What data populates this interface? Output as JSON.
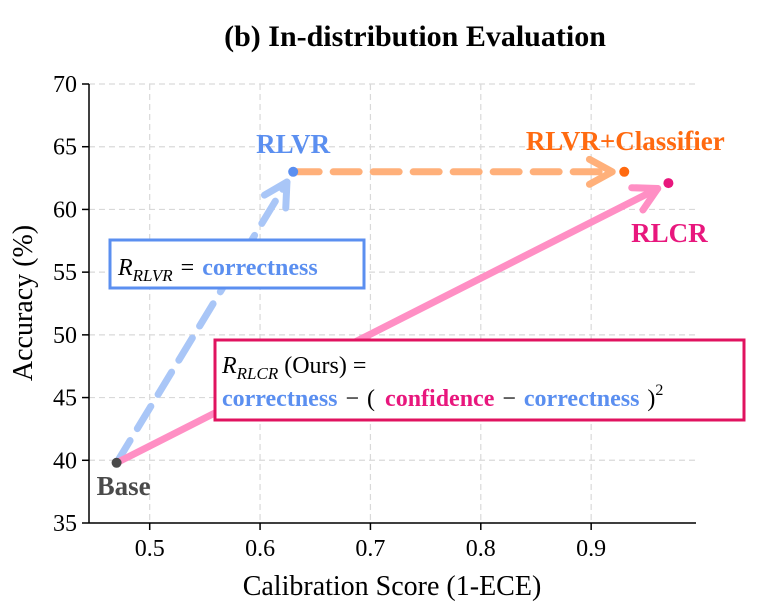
{
  "chart_data": {
    "type": "scatter",
    "title": "(b) In-distribution Evaluation",
    "xlabel": "Calibration Score (1-ECE)",
    "ylabel": "Accuracy (%)",
    "xlim": [
      0.445,
      0.995
    ],
    "ylim": [
      35,
      70
    ],
    "xticks": [
      0.5,
      0.6,
      0.7,
      0.8,
      0.9
    ],
    "xtick_labels": [
      "0.5",
      "0.6",
      "0.7",
      "0.8",
      "0.9"
    ],
    "yticks": [
      35,
      40,
      45,
      50,
      55,
      60,
      65,
      70
    ],
    "ytick_labels": [
      "35",
      "40",
      "45",
      "50",
      "55",
      "60",
      "65",
      "70"
    ],
    "grid": true,
    "points": [
      {
        "name": "Base",
        "x": 0.47,
        "y": 39.8,
        "color": "#4a4a4a"
      },
      {
        "name": "RLVR",
        "x": 0.63,
        "y": 63.0,
        "color": "#5b8ff0"
      },
      {
        "name": "RLVR+Classifier",
        "x": 0.93,
        "y": 63.0,
        "color": "#ff6a10"
      },
      {
        "name": "RLCR",
        "x": 0.97,
        "y": 62.1,
        "color": "#e8177d"
      }
    ],
    "arrows": [
      {
        "from": "Base",
        "to": "RLVR",
        "style": "dashed",
        "color": "#a9c6f7"
      },
      {
        "from": "RLVR",
        "to": "RLVR+Classifier",
        "style": "dashed",
        "color": "#ffb07a"
      },
      {
        "from": "Base",
        "to": "RLCR",
        "style": "solid",
        "color": "#ff8fc4"
      }
    ],
    "annotations": {
      "rlvr_box": {
        "r_symbol": "R",
        "subscript": "RLVR",
        "equals": "=",
        "term": "correctness",
        "border_color": "#5b8ff0"
      },
      "rlcr_box": {
        "r_symbol": "R",
        "subscript": "RLCR",
        "suffix": "(Ours) =",
        "term1": "correctness",
        "minus1": "−",
        "open_paren": "(",
        "term2": "confidence",
        "minus2": "−",
        "term3": "correctness",
        "close_paren": ")",
        "exponent": "2",
        "border_color": "#e0135f"
      }
    },
    "colors": {
      "blue_text": "#5b8ff0",
      "pink_text": "#e8177d",
      "orange_text": "#ff6a10",
      "base_text": "#404040"
    }
  }
}
